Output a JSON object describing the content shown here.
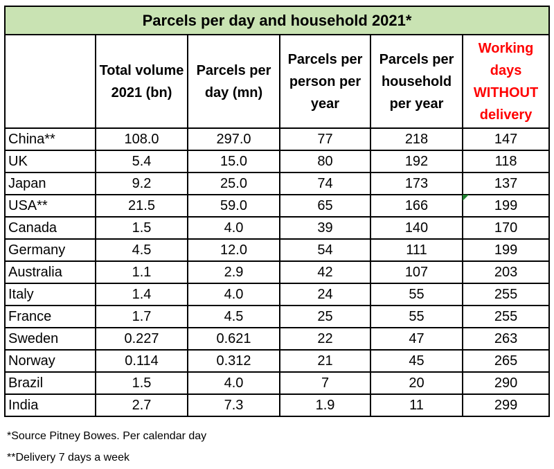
{
  "title": "Parcels per day and household 2021*",
  "headers": [
    "",
    "Total volume 2021 (bn)",
    "Parcels per day (mn)",
    "Parcels per person per year",
    "Parcels per household per year",
    "Working days WITHOUT delivery"
  ],
  "highlight_color": "#ff0000",
  "title_bg_color": "#c9e3b3",
  "rows": [
    {
      "country": "China**",
      "total_volume": "108.0",
      "per_day": "297.0",
      "per_person": "77",
      "per_household": "218",
      "days_without": "147"
    },
    {
      "country": "UK",
      "total_volume": "5.4",
      "per_day": "15.0",
      "per_person": "80",
      "per_household": "192",
      "days_without": "118"
    },
    {
      "country": "Japan",
      "total_volume": "9.2",
      "per_day": "25.0",
      "per_person": "74",
      "per_household": "173",
      "days_without": "137"
    },
    {
      "country": "USA**",
      "total_volume": "21.5",
      "per_day": "59.0",
      "per_person": "65",
      "per_household": "166",
      "days_without": "199"
    },
    {
      "country": "Canada",
      "total_volume": "1.5",
      "per_day": "4.0",
      "per_person": "39",
      "per_household": "140",
      "days_without": "170"
    },
    {
      "country": "Germany",
      "total_volume": "4.5",
      "per_day": "12.0",
      "per_person": "54",
      "per_household": "111",
      "days_without": "199"
    },
    {
      "country": "Australia",
      "total_volume": "1.1",
      "per_day": "2.9",
      "per_person": "42",
      "per_household": "107",
      "days_without": "203"
    },
    {
      "country": "Italy",
      "total_volume": "1.4",
      "per_day": "4.0",
      "per_person": "24",
      "per_household": "55",
      "days_without": "255"
    },
    {
      "country": "France",
      "total_volume": "1.7",
      "per_day": "4.5",
      "per_person": "25",
      "per_household": "55",
      "days_without": "255"
    },
    {
      "country": "Sweden",
      "total_volume": "0.227",
      "per_day": "0.621",
      "per_person": "22",
      "per_household": "47",
      "days_without": "263"
    },
    {
      "country": "Norway",
      "total_volume": "0.114",
      "per_day": "0.312",
      "per_person": "21",
      "per_household": "45",
      "days_without": "265"
    },
    {
      "country": "Brazil",
      "total_volume": "1.5",
      "per_day": "4.0",
      "per_person": "7",
      "per_household": "20",
      "days_without": "290"
    },
    {
      "country": "India",
      "total_volume": "2.7",
      "per_day": "7.3",
      "per_person": "1.9",
      "per_household": "11",
      "days_without": "299"
    }
  ],
  "footnotes": [
    "*Source Pitney Bowes. Per calendar day",
    "**Delivery 7 days a week"
  ]
}
